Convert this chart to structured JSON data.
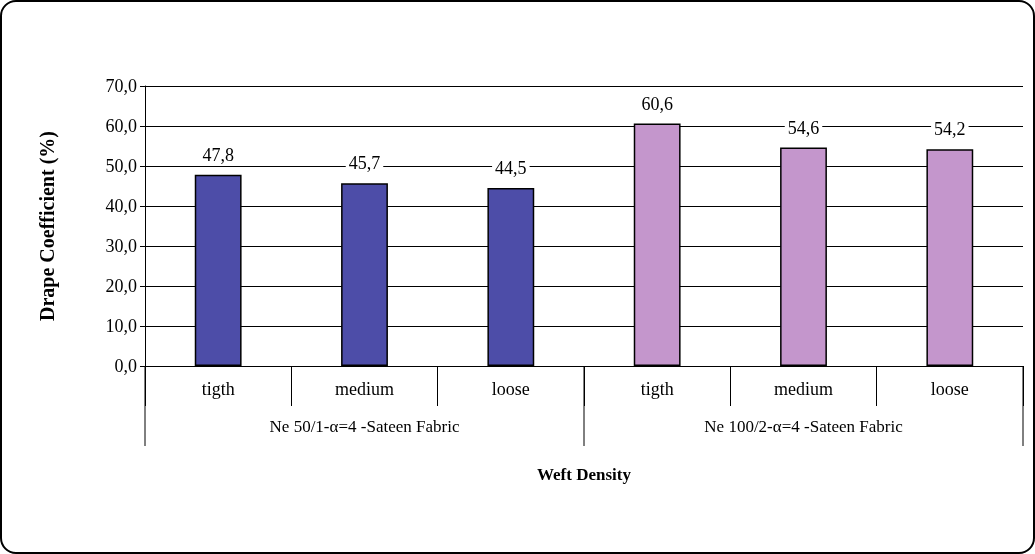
{
  "chart_data": {
    "type": "bar",
    "xlabel": "Weft Density",
    "ylabel": "Drape Coefficient (%)",
    "categories": [
      "tigth",
      "medium",
      "loose",
      "tigth",
      "medium",
      "loose"
    ],
    "values": [
      47.8,
      45.7,
      44.5,
      60.6,
      54.6,
      54.2
    ],
    "colors": [
      "#4d4da8",
      "#4d4da8",
      "#4d4da8",
      "#c496cc",
      "#c496cc",
      "#c496cc"
    ],
    "value_labels": [
      "47,8",
      "45,7",
      "44,5",
      "60,6",
      "54,6",
      "54,2"
    ],
    "annotations": [
      "Ne 50/1-α=4 -Sateen Fabric",
      "Ne 100/2-α=4 -Sateen Fabric"
    ],
    "ylim": [
      0,
      70
    ],
    "yticks": [
      {
        "value": 0,
        "label": "0,0"
      },
      {
        "value": 10,
        "label": "10,0"
      },
      {
        "value": 20,
        "label": "20,0"
      },
      {
        "value": 30,
        "label": "30,0"
      },
      {
        "value": 40,
        "label": "40,0"
      },
      {
        "value": 50,
        "label": "50,0"
      },
      {
        "value": 60,
        "label": "60,0"
      },
      {
        "value": 70,
        "label": "70,0"
      }
    ],
    "grid": "y"
  }
}
